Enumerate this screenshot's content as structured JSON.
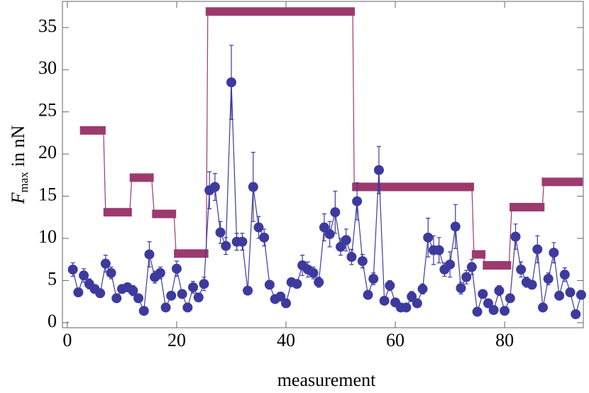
{
  "chart_data": {
    "type": "errorbar_steps",
    "x_label": "measurement",
    "y_label": {
      "symbol": "F",
      "subscript": "max",
      "text": "in nN"
    },
    "xlim": [
      -0.9,
      94.4
    ],
    "ylim": [
      -0.6,
      38.1
    ],
    "xticks": [
      0,
      20,
      40,
      60,
      80
    ],
    "yticks": [
      0,
      5,
      10,
      15,
      20,
      25,
      30,
      35
    ],
    "points": {
      "color": "#3d3a9e",
      "x": [
        1,
        2,
        3,
        4,
        5,
        6,
        7,
        8,
        9,
        10,
        11,
        12,
        13,
        14,
        15,
        16,
        17,
        18,
        19,
        20,
        21,
        22,
        23,
        24,
        25,
        26,
        27,
        28,
        29,
        30,
        31,
        32,
        33,
        34,
        35,
        36,
        37,
        38,
        39,
        40,
        41,
        42,
        43,
        44,
        45,
        46,
        47,
        48,
        49,
        50,
        51,
        52,
        53,
        54,
        55,
        56,
        57,
        58,
        59,
        60,
        61,
        62,
        63,
        64,
        65,
        66,
        67,
        68,
        69,
        70,
        71,
        72,
        73,
        74,
        75,
        76,
        77,
        78,
        79,
        80,
        81,
        82,
        83,
        84,
        85,
        86,
        87,
        88,
        89,
        90,
        91,
        92,
        93,
        94
      ],
      "values": [
        6.3,
        3.6,
        5.6,
        4.6,
        4.0,
        3.5,
        7.0,
        5.9,
        2.9,
        4.0,
        4.2,
        3.8,
        2.9,
        1.4,
        8.1,
        5.4,
        5.9,
        1.8,
        3.2,
        6.4,
        3.4,
        1.8,
        4.2,
        3.0,
        4.6,
        15.7,
        16.1,
        10.7,
        9.1,
        28.5,
        9.6,
        9.6,
        3.8,
        16.1,
        11.3,
        10.1,
        4.5,
        2.8,
        3.1,
        2.3,
        4.8,
        4.6,
        6.8,
        6.3,
        5.9,
        4.8,
        11.3,
        10.5,
        13.1,
        9.0,
        9.8,
        7.8,
        14.4,
        7.3,
        3.3,
        5.2,
        18.1,
        2.6,
        4.4,
        2.4,
        1.8,
        1.8,
        3.1,
        2.3,
        4.0,
        10.1,
        8.6,
        8.6,
        6.3,
        6.9,
        11.4,
        4.1,
        5.4,
        6.6,
        1.3,
        3.4,
        2.3,
        1.5,
        3.8,
        1.4,
        2.9,
        10.2,
        6.3,
        4.8,
        4.5,
        8.7,
        1.8,
        5.2,
        8.3,
        3.2,
        5.7,
        3.6,
        1.0,
        3.3
      ],
      "errors": [
        0.8,
        0.5,
        0.8,
        0.6,
        0.5,
        0.5,
        1.0,
        0.7,
        0.4,
        0.5,
        0.5,
        0.6,
        0.5,
        0.3,
        1.5,
        0.7,
        0.7,
        0.4,
        0.5,
        0.9,
        0.5,
        0.3,
        0.7,
        0.5,
        0.8,
        2.2,
        1.6,
        1.3,
        1.0,
        4.4,
        1.0,
        1.0,
        0.4,
        4.1,
        1.3,
        1.0,
        0.5,
        0.4,
        0.4,
        0.3,
        0.5,
        0.5,
        1.2,
        0.9,
        0.7,
        0.6,
        1.6,
        1.5,
        2.5,
        1.0,
        1.3,
        0.9,
        2.2,
        0.8,
        0.5,
        0.7,
        2.8,
        0.4,
        0.6,
        0.3,
        0.3,
        0.3,
        0.6,
        0.4,
        0.6,
        2.3,
        1.7,
        1.5,
        0.8,
        1.5,
        2.6,
        0.7,
        0.8,
        0.9,
        0.3,
        0.5,
        0.4,
        0.3,
        0.6,
        0.3,
        0.4,
        1.5,
        0.9,
        0.6,
        0.5,
        1.6,
        0.3,
        0.7,
        1.2,
        0.5,
        0.8,
        0.5,
        0.2,
        0.5
      ]
    },
    "steps": {
      "color": "#9c3a6e",
      "x_start": [
        2.3,
        6.6,
        11.4,
        15.5,
        19.5,
        25.3,
        52.1,
        74.0,
        76.0,
        80.9,
        86.8
      ],
      "x_end": [
        7.0,
        11.8,
        15.8,
        19.9,
        25.8,
        52.6,
        74.4,
        76.5,
        81.2,
        87.3,
        94.3
      ],
      "values": [
        22.8,
        13.1,
        17.2,
        12.9,
        8.2,
        36.9,
        16.1,
        8.1,
        6.8,
        13.7,
        16.7
      ]
    }
  }
}
